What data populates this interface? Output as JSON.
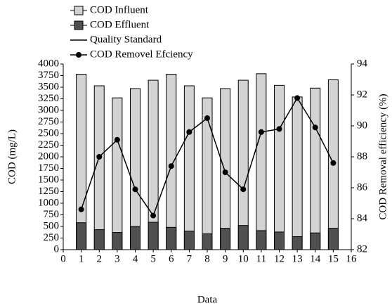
{
  "chart_data": {
    "type": "bar",
    "x_label": "Data",
    "y_label": "COD (mg/L)",
    "y2_label": "COD Removal efficiency (%)",
    "x": [
      1,
      2,
      3,
      4,
      5,
      6,
      7,
      8,
      9,
      10,
      11,
      12,
      13,
      14,
      15
    ],
    "xlim": [
      0,
      16
    ],
    "xticks": [
      0,
      1,
      2,
      3,
      4,
      5,
      6,
      7,
      8,
      9,
      10,
      11,
      12,
      13,
      14,
      15,
      16
    ],
    "ylim": [
      0,
      4000
    ],
    "yticks": [
      0,
      250,
      500,
      750,
      1000,
      1250,
      1500,
      1750,
      2000,
      2250,
      2500,
      2750,
      3000,
      3250,
      3500,
      3750,
      4000
    ],
    "y2lim": [
      82,
      94
    ],
    "y2ticks": [
      82,
      84,
      86,
      88,
      90,
      92,
      94
    ],
    "series": [
      {
        "name": "COD Influent",
        "type": "bar",
        "color": "#d3d3d3",
        "values": [
          3780,
          3530,
          3270,
          3470,
          3650,
          3780,
          3530,
          3270,
          3470,
          3650,
          3790,
          3540,
          3290,
          3480,
          3660
        ]
      },
      {
        "name": "COD Effluent",
        "type": "bar",
        "color": "#505050",
        "values": [
          580,
          430,
          370,
          500,
          590,
          480,
          400,
          340,
          460,
          520,
          410,
          380,
          280,
          360,
          460
        ]
      },
      {
        "name": "Quality Standard",
        "type": "line",
        "color": "#000000"
      },
      {
        "name": "COD Removel Efciency",
        "type": "line",
        "axis": "y2",
        "color": "#000000",
        "values": [
          84.6,
          88.0,
          89.1,
          85.9,
          84.2,
          87.4,
          89.6,
          90.5,
          87.0,
          85.9,
          89.6,
          89.8,
          91.8,
          89.9,
          87.6
        ]
      }
    ]
  }
}
